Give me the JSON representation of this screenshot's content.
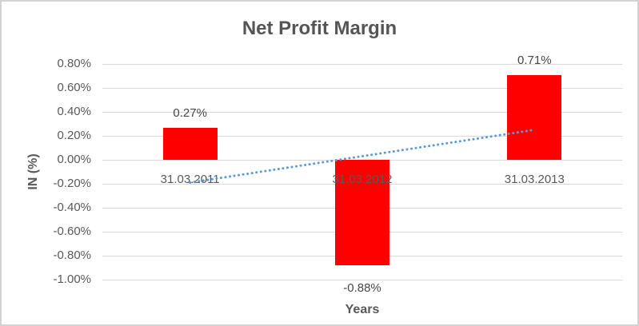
{
  "chart_data": {
    "type": "bar",
    "title": "Net Profit Margin",
    "xlabel": "Years",
    "ylabel": "IN (%)",
    "categories": [
      "31.03.2011",
      "31.03.2012",
      "31.03.2013"
    ],
    "values": [
      0.27,
      -0.88,
      0.71
    ],
    "data_labels": [
      "0.27%",
      "-0.88%",
      "0.71%"
    ],
    "ylim": [
      -1.0,
      0.8
    ],
    "ytick_values": [
      0.8,
      0.6,
      0.4,
      0.2,
      0.0,
      -0.2,
      -0.4,
      -0.6,
      -0.8,
      -1.0
    ],
    "ytick_labels": [
      "0.80%",
      "0.60%",
      "0.40%",
      "0.20%",
      "0.00%",
      "-0.20%",
      "-0.40%",
      "-0.60%",
      "-0.80%",
      "-1.00%"
    ],
    "grid": true,
    "legend": "none",
    "bar_color": "#FF0000",
    "trendline": {
      "type": "linear",
      "style": "dotted",
      "color": "#5B9BD5",
      "start_value": -0.19,
      "end_value": 0.25
    }
  }
}
